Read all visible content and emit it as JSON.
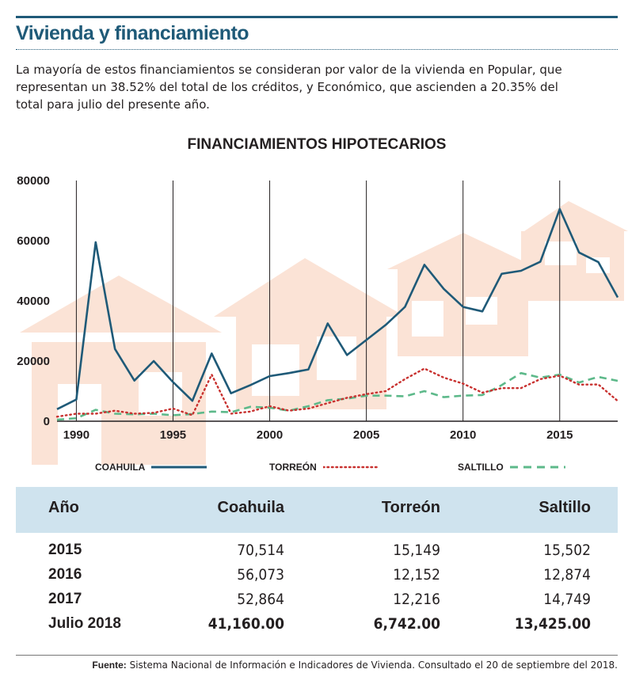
{
  "header": {
    "title": "Vivienda y financiamiento",
    "intro": "La mayoría de estos financiamientos se consideran por valor de la vivienda en Popular, que representan un 38.52% del total de los créditos, y Económico, que ascienden a 20.35% del total para julio del presente año."
  },
  "chart_data": {
    "type": "line",
    "title": "FINANCIAMIENTOS HIPOTECARIOS",
    "xlabel": "",
    "ylabel": "",
    "xlim": [
      1989,
      2018
    ],
    "ylim": [
      0,
      80000
    ],
    "x_ticks": [
      1990,
      1995,
      2000,
      2005,
      2010,
      2015
    ],
    "y_ticks": [
      0,
      20000,
      40000,
      60000,
      80000
    ],
    "grid": "vertical",
    "legend_position": "bottom",
    "x": [
      1989,
      1990,
      1991,
      1992,
      1993,
      1994,
      1995,
      1996,
      1997,
      1998,
      1999,
      2000,
      2001,
      2002,
      2003,
      2004,
      2005,
      2006,
      2007,
      2008,
      2009,
      2010,
      2011,
      2012,
      2013,
      2014,
      2015,
      2016,
      2017,
      2018
    ],
    "series": [
      {
        "name": "COAHUILA",
        "color": "#1f5a78",
        "style": "solid",
        "values": [
          4000,
          7200,
          59500,
          24000,
          13500,
          20000,
          13000,
          6800,
          22500,
          9300,
          12000,
          15000,
          16000,
          17200,
          32500,
          22000,
          27000,
          32000,
          38000,
          52000,
          44000,
          38000,
          36500,
          49000,
          50000,
          53000,
          70514,
          56073,
          52864,
          41160
        ]
      },
      {
        "name": "TORREÓN",
        "color": "#c8312f",
        "style": "dotted",
        "values": [
          1500,
          2500,
          2500,
          3500,
          2500,
          2800,
          4200,
          2000,
          15500,
          2500,
          3200,
          5000,
          3500,
          4200,
          6000,
          7800,
          9000,
          10000,
          14000,
          17500,
          14500,
          12500,
          9500,
          11000,
          11000,
          14000,
          15149,
          12152,
          12216,
          6742
        ]
      },
      {
        "name": "SALTILLO",
        "color": "#5db98a",
        "style": "dashed",
        "values": [
          500,
          1000,
          3800,
          2500,
          2300,
          2500,
          2000,
          2400,
          3200,
          3000,
          4800,
          4500,
          3500,
          5000,
          7000,
          7500,
          8500,
          8500,
          8300,
          10000,
          8000,
          8500,
          8700,
          12000,
          16000,
          14500,
          15502,
          12874,
          14749,
          13425
        ]
      }
    ]
  },
  "table": {
    "headers": [
      "Año",
      "Coahuila",
      "Torreón",
      "Saltillo"
    ],
    "rows": [
      [
        "2015",
        "70,514",
        "15,149",
        "15,502"
      ],
      [
        "2016",
        "56,073",
        "12,152",
        "12,874"
      ],
      [
        "2017",
        "52,864",
        "12,216",
        "14,749"
      ],
      [
        "Julio 2018",
        "41,160.00",
        "6,742.00",
        "13,425.00"
      ]
    ]
  },
  "footer": {
    "source_label": "Fuente:",
    "source_text": "Sistema Nacional de Información e Indicadores de Vivienda. Consultado el 20 de septiembre del 2018."
  },
  "colors": {
    "accent": "#1f5a78",
    "table_header_bg": "#cfe3ee",
    "house_illustration": "#fbe3d6"
  }
}
